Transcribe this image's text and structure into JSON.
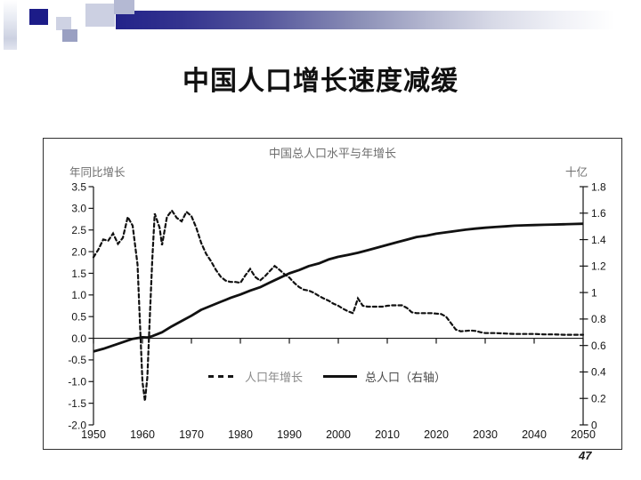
{
  "slide": {
    "title": "中国人口增长速度减缓",
    "page_number": "47"
  },
  "chart": {
    "title": "中国总人口水平与年增长",
    "left_axis_label": "年同比增长",
    "right_axis_label": "十亿",
    "legend": [
      {
        "label": "人口年增长",
        "style": "dashed"
      },
      {
        "label": "总人口（右轴）",
        "style": "solid"
      }
    ]
  },
  "chart_data": {
    "type": "line",
    "title": "中国总人口水平与年增长",
    "x_ticks": [
      1950,
      1960,
      1970,
      1980,
      1990,
      2000,
      2010,
      2020,
      2030,
      2040,
      2050
    ],
    "x_range": [
      1950,
      2050
    ],
    "grid": false,
    "legend_position": "inside-bottom",
    "left_axis": {
      "label": "年同比增长",
      "unit": "percent",
      "min": -2.0,
      "max": 3.5,
      "ticks": [
        "3.5",
        "3.0",
        "2.5",
        "2.0",
        "1.5",
        "1.0",
        "0.5",
        "0.0",
        "-0.5",
        "-1.0",
        "-1.5",
        "-2.0"
      ]
    },
    "right_axis": {
      "label": "十亿",
      "unit": "billions",
      "min": 0,
      "max": 1.8,
      "ticks": [
        "1.8",
        "1.6",
        "1.4",
        "1.2",
        "1",
        "0.8",
        "0.6",
        "0.4",
        "0.2",
        "0"
      ]
    },
    "series": [
      {
        "name": "人口年增长",
        "axis": "left",
        "style": "dashed",
        "color": "#111111",
        "points": [
          [
            1950,
            1.87
          ],
          [
            1951,
            2.05
          ],
          [
            1952,
            2.28
          ],
          [
            1953,
            2.25
          ],
          [
            1954,
            2.42
          ],
          [
            1955,
            2.18
          ],
          [
            1956,
            2.32
          ],
          [
            1957,
            2.8
          ],
          [
            1958,
            2.6
          ],
          [
            1959,
            1.7
          ],
          [
            1959.5,
            0.3
          ],
          [
            1960,
            -1.0
          ],
          [
            1960.5,
            -1.45
          ],
          [
            1961,
            -0.9
          ],
          [
            1961.5,
            0.5
          ],
          [
            1962,
            1.8
          ],
          [
            1962.5,
            2.88
          ],
          [
            1963.5,
            2.55
          ],
          [
            1964,
            2.15
          ],
          [
            1965,
            2.8
          ],
          [
            1966,
            2.95
          ],
          [
            1967,
            2.78
          ],
          [
            1968,
            2.7
          ],
          [
            1969,
            2.92
          ],
          [
            1970,
            2.82
          ],
          [
            1971,
            2.55
          ],
          [
            1972,
            2.2
          ],
          [
            1973,
            1.95
          ],
          [
            1974,
            1.78
          ],
          [
            1975,
            1.58
          ],
          [
            1976,
            1.42
          ],
          [
            1977,
            1.33
          ],
          [
            1978,
            1.3
          ],
          [
            1979,
            1.3
          ],
          [
            1980,
            1.28
          ],
          [
            1981,
            1.45
          ],
          [
            1982,
            1.6
          ],
          [
            1983,
            1.42
          ],
          [
            1984,
            1.33
          ],
          [
            1985,
            1.43
          ],
          [
            1986,
            1.55
          ],
          [
            1987,
            1.67
          ],
          [
            1988,
            1.58
          ],
          [
            1989,
            1.48
          ],
          [
            1990,
            1.4
          ],
          [
            1991,
            1.28
          ],
          [
            1992,
            1.18
          ],
          [
            1993,
            1.12
          ],
          [
            1994,
            1.1
          ],
          [
            1995,
            1.05
          ],
          [
            1996,
            0.98
          ],
          [
            1997,
            0.92
          ],
          [
            1998,
            0.87
          ],
          [
            1999,
            0.8
          ],
          [
            2000,
            0.75
          ],
          [
            2001,
            0.68
          ],
          [
            2002,
            0.62
          ],
          [
            2003,
            0.58
          ],
          [
            2004,
            0.92
          ],
          [
            2005,
            0.75
          ],
          [
            2006,
            0.73
          ],
          [
            2007,
            0.73
          ],
          [
            2008,
            0.73
          ],
          [
            2009,
            0.73
          ],
          [
            2010,
            0.75
          ],
          [
            2011,
            0.76
          ],
          [
            2012,
            0.76
          ],
          [
            2013,
            0.76
          ],
          [
            2014,
            0.7
          ],
          [
            2015,
            0.6
          ],
          [
            2016,
            0.58
          ],
          [
            2017,
            0.58
          ],
          [
            2018,
            0.58
          ],
          [
            2019,
            0.58
          ],
          [
            2020,
            0.57
          ],
          [
            2021,
            0.56
          ],
          [
            2022,
            0.5
          ],
          [
            2023,
            0.35
          ],
          [
            2024,
            0.2
          ],
          [
            2025,
            0.16
          ],
          [
            2026,
            0.17
          ],
          [
            2027,
            0.18
          ],
          [
            2028,
            0.17
          ],
          [
            2029,
            0.14
          ],
          [
            2030,
            0.12
          ],
          [
            2032,
            0.12
          ],
          [
            2034,
            0.11
          ],
          [
            2036,
            0.1
          ],
          [
            2038,
            0.1
          ],
          [
            2040,
            0.1
          ],
          [
            2042,
            0.09
          ],
          [
            2044,
            0.09
          ],
          [
            2046,
            0.08
          ],
          [
            2048,
            0.08
          ],
          [
            2050,
            0.08
          ]
        ]
      },
      {
        "name": "总人口（右轴）",
        "axis": "right",
        "style": "solid",
        "color": "#111111",
        "points": [
          [
            1950,
            0.555
          ],
          [
            1952,
            0.575
          ],
          [
            1954,
            0.6
          ],
          [
            1956,
            0.625
          ],
          [
            1958,
            0.65
          ],
          [
            1960,
            0.662
          ],
          [
            1961,
            0.66
          ],
          [
            1962,
            0.67
          ],
          [
            1964,
            0.7
          ],
          [
            1966,
            0.745
          ],
          [
            1968,
            0.785
          ],
          [
            1970,
            0.825
          ],
          [
            1972,
            0.87
          ],
          [
            1974,
            0.9
          ],
          [
            1976,
            0.93
          ],
          [
            1978,
            0.96
          ],
          [
            1980,
            0.985
          ],
          [
            1982,
            1.015
          ],
          [
            1984,
            1.04
          ],
          [
            1986,
            1.075
          ],
          [
            1988,
            1.11
          ],
          [
            1990,
            1.145
          ],
          [
            1992,
            1.17
          ],
          [
            1994,
            1.2
          ],
          [
            1996,
            1.22
          ],
          [
            1998,
            1.25
          ],
          [
            2000,
            1.27
          ],
          [
            2002,
            1.285
          ],
          [
            2004,
            1.3
          ],
          [
            2006,
            1.32
          ],
          [
            2008,
            1.34
          ],
          [
            2010,
            1.36
          ],
          [
            2012,
            1.38
          ],
          [
            2014,
            1.4
          ],
          [
            2016,
            1.42
          ],
          [
            2018,
            1.43
          ],
          [
            2020,
            1.445
          ],
          [
            2022,
            1.455
          ],
          [
            2024,
            1.465
          ],
          [
            2026,
            1.475
          ],
          [
            2028,
            1.483
          ],
          [
            2030,
            1.49
          ],
          [
            2032,
            1.495
          ],
          [
            2034,
            1.5
          ],
          [
            2036,
            1.505
          ],
          [
            2038,
            1.508
          ],
          [
            2040,
            1.51
          ],
          [
            2042,
            1.512
          ],
          [
            2044,
            1.514
          ],
          [
            2046,
            1.516
          ],
          [
            2048,
            1.518
          ],
          [
            2050,
            1.52
          ]
        ]
      }
    ]
  },
  "colors": {
    "accent_navy": "#1c1c88",
    "accent_light": "#ccd0e2",
    "line_color": "#111111",
    "chart_text_gray": "#6e6e6e"
  }
}
